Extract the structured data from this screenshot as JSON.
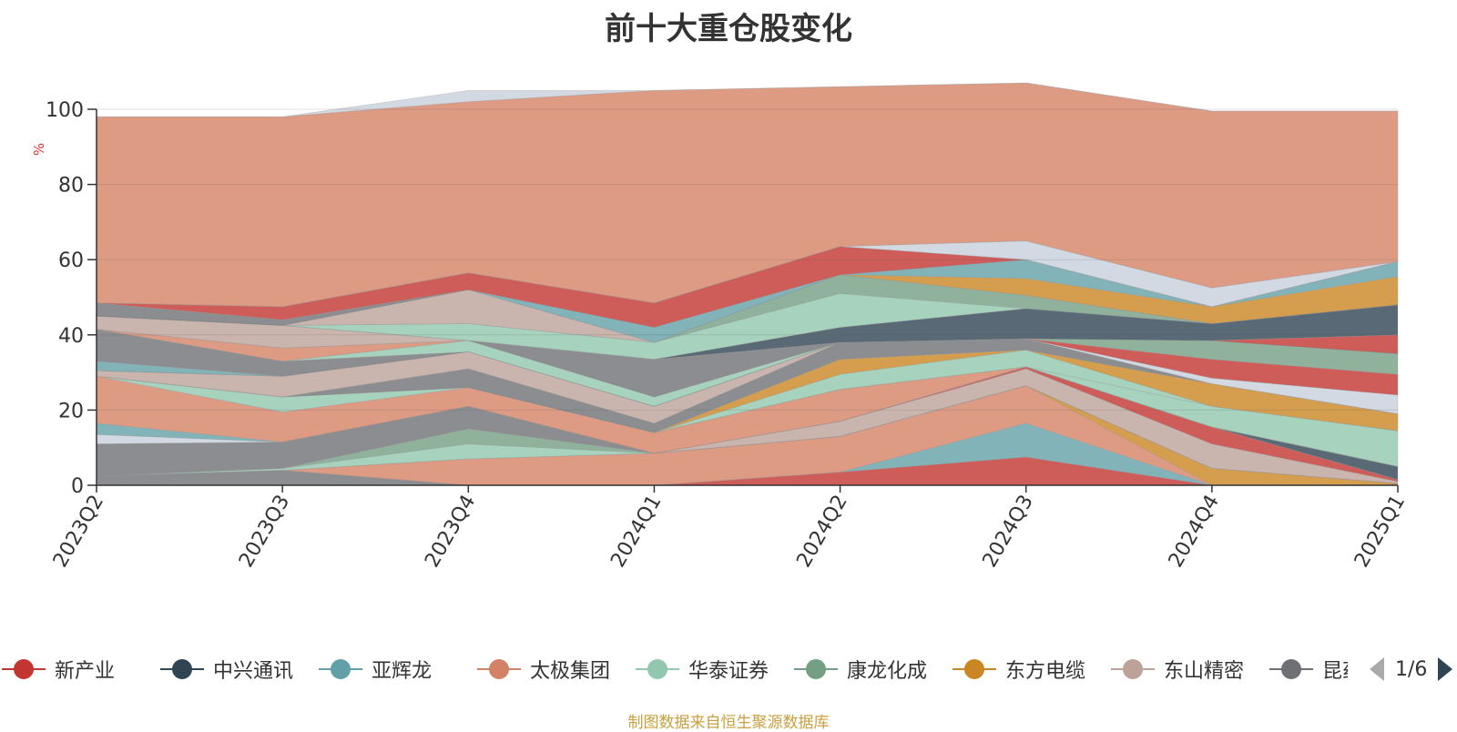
{
  "title": "前十大重仓股变化",
  "source": "制图数据来自恒生聚源数据库",
  "pager": {
    "text": "1/6"
  },
  "colors": {
    "新产业": "#c23531",
    "中兴通讯": "#2f4554",
    "亚辉龙": "#61a0a8",
    "太极集团": "#d48265",
    "华泰证券": "#91c7ae",
    "康龙化成": "#749f83",
    "东方电缆": "#ca8622",
    "东山精密": "#bda29a",
    "昆药集团": "#6e7074",
    "其他": "#c8d0dc"
  },
  "legend": [
    {
      "label": "新产业",
      "color": "#c23531"
    },
    {
      "label": "中兴通讯",
      "color": "#2f4554"
    },
    {
      "label": "亚辉龙",
      "color": "#61a0a8"
    },
    {
      "label": "太极集团",
      "color": "#d48265"
    },
    {
      "label": "华泰证券",
      "color": "#91c7ae"
    },
    {
      "label": "康龙化成",
      "color": "#749f83"
    },
    {
      "label": "东方电缆",
      "color": "#ca8622"
    },
    {
      "label": "东山精密",
      "color": "#bda29a"
    },
    {
      "label": "昆药集团",
      "color": "#6e7074"
    }
  ],
  "chart_data": {
    "type": "area",
    "stacked": true,
    "title": "前十大重仓股变化",
    "ylabel": "%",
    "ylim": [
      0,
      100
    ],
    "yticks": [
      0,
      20,
      40,
      60,
      80,
      100
    ],
    "categories": [
      "2023Q2",
      "2023Q3",
      "2023Q4",
      "2024Q1",
      "2024Q2",
      "2024Q3",
      "2024Q4",
      "2025Q1"
    ],
    "grid": true,
    "legend_position": "bottom",
    "series": [
      {
        "name": "",
        "color": "#6e7074",
        "values": [
          2.5,
          4,
          0,
          0,
          0,
          0,
          0,
          0
        ]
      },
      {
        "name": "",
        "color": "#c23531",
        "values": [
          0,
          0,
          0,
          0,
          3.5,
          7.5,
          0,
          0
        ]
      },
      {
        "name": "",
        "color": "#61a0a8",
        "values": [
          0,
          0,
          0,
          0,
          0,
          9,
          0,
          0
        ]
      },
      {
        "name": "",
        "color": "#d48265",
        "values": [
          0,
          0,
          7,
          8.5,
          9.5,
          10,
          0,
          0
        ]
      },
      {
        "name": "",
        "color": "#ca8622",
        "values": [
          0,
          0,
          0,
          0,
          0,
          0,
          4.5,
          0.5
        ]
      },
      {
        "name": "",
        "color": "#91c7ae",
        "values": [
          0,
          0.5,
          4,
          0,
          0,
          0,
          0,
          0
        ]
      },
      {
        "name": "",
        "color": "#749f83",
        "values": [
          0,
          0,
          4,
          0,
          0,
          0,
          0,
          0
        ]
      },
      {
        "name": "",
        "color": "#6e7074",
        "values": [
          8.5,
          7,
          6,
          0,
          0,
          0,
          0,
          0
        ]
      },
      {
        "name": "",
        "color": "#bda29a",
        "values": [
          0,
          0,
          0,
          0,
          4,
          4.5,
          6.5,
          0.5
        ]
      },
      {
        "name": "",
        "color": "#c23531",
        "values": [
          0,
          0,
          0,
          0,
          0,
          0.5,
          4.5,
          0.5
        ]
      },
      {
        "name": "",
        "color": "#2f4554",
        "values": [
          0,
          0,
          0,
          0,
          0,
          0,
          0,
          3.5
        ]
      },
      {
        "name": "",
        "color": "#c8d0dc",
        "values": [
          2.5,
          0,
          0,
          0,
          0,
          0,
          0,
          0
        ]
      },
      {
        "name": "",
        "color": "#61a0a8",
        "values": [
          3,
          0,
          0,
          0,
          0,
          0,
          0,
          0
        ]
      },
      {
        "name": "",
        "color": "#d48265",
        "values": [
          12.5,
          8,
          5,
          5.5,
          8.5,
          0,
          0,
          0
        ]
      },
      {
        "name": "",
        "color": "#91c7ae",
        "values": [
          0,
          4,
          0,
          0,
          0,
          0,
          5.5,
          9.5
        ]
      },
      {
        "name": "",
        "color": "#91c7ae",
        "values": [
          0,
          0,
          0,
          0,
          4,
          4.5,
          0,
          0
        ]
      },
      {
        "name": "",
        "color": "#ca8622",
        "values": [
          0,
          0,
          0,
          0,
          4,
          0,
          6,
          4.5
        ]
      },
      {
        "name": "",
        "color": "#6e7074",
        "values": [
          0,
          0,
          5,
          2.5,
          4.5,
          3,
          0,
          0
        ]
      },
      {
        "name": "",
        "color": "#bda29a",
        "values": [
          1.5,
          5.5,
          4.5,
          4.5,
          0,
          0,
          0,
          0
        ]
      },
      {
        "name": "",
        "color": "#c8d0dc",
        "values": [
          0,
          0,
          0,
          0,
          0,
          0,
          1.5,
          5
        ]
      },
      {
        "name": "",
        "color": "#c23531",
        "values": [
          0,
          0,
          0,
          0,
          0,
          0,
          5,
          5.5
        ]
      },
      {
        "name": "",
        "color": "#749f83",
        "values": [
          0,
          0,
          0,
          0,
          0,
          0,
          5,
          5.5
        ]
      },
      {
        "name": "",
        "color": "#61a0a8",
        "values": [
          2.5,
          0,
          0,
          0,
          0,
          0,
          0,
          0
        ]
      },
      {
        "name": "",
        "color": "#6e7074",
        "values": [
          8.5,
          4,
          0,
          0,
          0,
          0,
          0,
          0
        ]
      },
      {
        "name": "",
        "color": "#91c7ae",
        "values": [
          0,
          0,
          3,
          2.5,
          0,
          0,
          0,
          0
        ]
      },
      {
        "name": "",
        "color": "#d48265",
        "values": [
          0,
          3.5,
          0,
          0,
          0,
          0,
          0,
          0
        ]
      },
      {
        "name": "",
        "color": "#6e7074",
        "values": [
          0,
          0,
          0,
          10,
          0,
          0,
          0,
          0
        ]
      },
      {
        "name": "",
        "color": "#bda29a",
        "values": [
          3.5,
          6,
          0,
          0,
          0,
          0,
          0,
          0
        ]
      },
      {
        "name": "",
        "color": "#c23531",
        "values": [
          0,
          0,
          0,
          0,
          0,
          0,
          0,
          5
        ]
      },
      {
        "name": "",
        "color": "#2f4554",
        "values": [
          0,
          0,
          0,
          0,
          4,
          8,
          4.5,
          8
        ]
      },
      {
        "name": "",
        "color": "#91c7ae",
        "values": [
          0,
          0,
          4.5,
          4.5,
          9,
          0,
          0,
          0
        ]
      },
      {
        "name": "",
        "color": "#749f83",
        "values": [
          0,
          0,
          0,
          0,
          5,
          3.5,
          0,
          0
        ]
      },
      {
        "name": "",
        "color": "#bda29a",
        "values": [
          0,
          0,
          9,
          0,
          0,
          0,
          0,
          0
        ]
      },
      {
        "name": "",
        "color": "#ca8622",
        "values": [
          0,
          0,
          0,
          0,
          0,
          4.5,
          4.5,
          7.5
        ]
      },
      {
        "name": "",
        "color": "#61a0a8",
        "values": [
          0,
          0,
          0,
          4,
          0,
          5,
          0,
          4
        ]
      },
      {
        "name": "",
        "color": "#6e7074",
        "values": [
          3.5,
          1.5,
          0,
          0,
          0,
          0,
          0,
          0
        ]
      },
      {
        "name": "",
        "color": "#c23531",
        "values": [
          0,
          3.5,
          4.5,
          6.5,
          7.5,
          0,
          0,
          0
        ]
      },
      {
        "name": "",
        "color": "#c8d0dc",
        "values": [
          0,
          0,
          0,
          0,
          0,
          5,
          5,
          0
        ]
      },
      {
        "name": "",
        "color": "#d48265",
        "values": [
          49.5,
          50.5,
          45.5,
          56.5,
          42.5,
          42,
          47,
          40
        ]
      },
      {
        "name": "",
        "color": "#c8d0dc",
        "values": [
          0,
          0,
          3,
          0,
          0,
          0,
          0,
          0
        ]
      }
    ]
  }
}
